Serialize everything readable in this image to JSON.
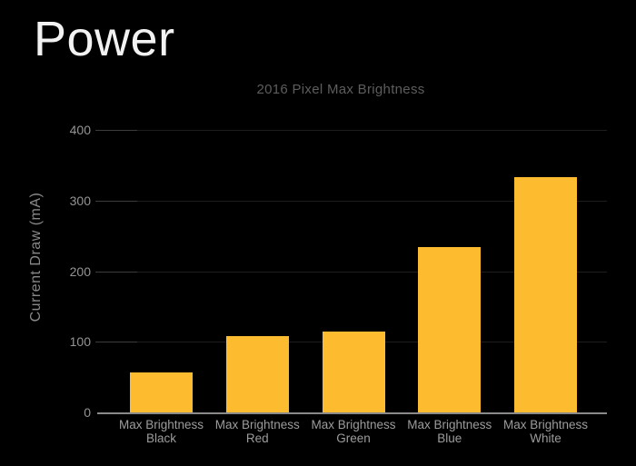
{
  "slide": {
    "title": "Power"
  },
  "chart_data": {
    "type": "bar",
    "title": "2016 Pixel Max Brightness",
    "categories": [
      "Max Brightness Black",
      "Max Brightness Red",
      "Max Brightness Green",
      "Max Brightness Blue",
      "Max Brightness White"
    ],
    "values": [
      56,
      108,
      115,
      234,
      333
    ],
    "xlabel": "",
    "ylabel": "Current Draw (mA)",
    "ylim": [
      0,
      400
    ],
    "yticks": [
      0,
      100,
      200,
      300,
      400
    ],
    "grid": true,
    "legend": false,
    "bar_color": "#fdbb2f",
    "background_color": "#000000",
    "axis_line_color": "#8a8a8a",
    "gridline_color": "#1d1d1d",
    "title_color": "#5d5d5d",
    "tick_label_color": "#949494",
    "category_label_color": "#9c9c9c",
    "slide_title_color": "#f2f2f2"
  }
}
